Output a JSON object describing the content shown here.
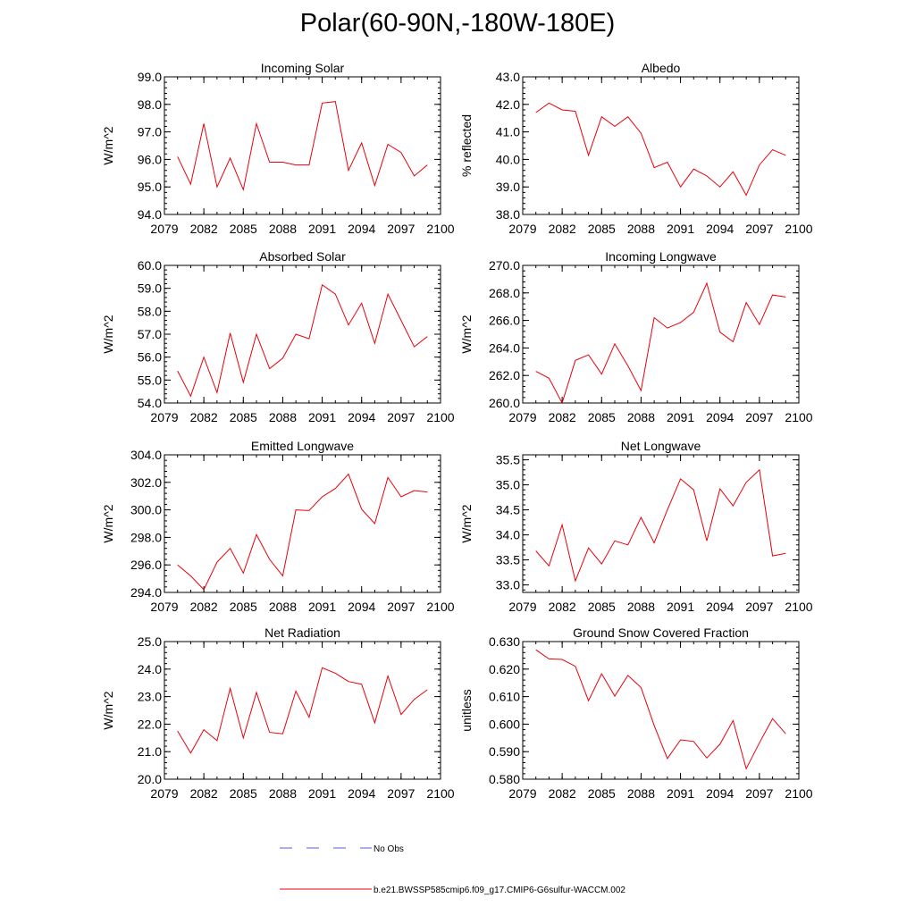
{
  "figure": {
    "title": "Polar(60-90N,-180W-180E)"
  },
  "legend": {
    "entries": [
      {
        "label": "No Obs",
        "color": "#5b5bd6",
        "dash": "dashed"
      },
      {
        "label": "b.e21.BWSSP585cmip6.f09_g17.CMIP6-G6sulfur-WACCM.002",
        "color": "#e8000b",
        "dash": "solid"
      }
    ]
  },
  "chart_data": [
    {
      "type": "line",
      "title": "Incoming Solar",
      "ylabel": "W/m^2",
      "xlim": [
        2079,
        2100
      ],
      "ylim": [
        94.0,
        99.0
      ],
      "xticks": [
        2079,
        2082,
        2085,
        2088,
        2091,
        2094,
        2097,
        2100
      ],
      "yticks": [
        "94.0",
        "95.0",
        "96.0",
        "97.0",
        "98.0",
        "99.0"
      ],
      "series": [
        {
          "color": "#e8000b",
          "x": [
            2080,
            2081,
            2082,
            2083,
            2084,
            2085,
            2086,
            2087,
            2088,
            2089,
            2090,
            2091,
            2092,
            2093,
            2094,
            2095,
            2096,
            2097,
            2098,
            2099
          ],
          "y": [
            96.1,
            95.1,
            97.3,
            95.0,
            96.05,
            94.9,
            97.3,
            95.9,
            95.9,
            95.8,
            95.8,
            98.05,
            98.1,
            95.6,
            96.6,
            95.05,
            96.55,
            96.25,
            95.4,
            95.8
          ]
        }
      ]
    },
    {
      "type": "line",
      "title": "Albedo",
      "ylabel": "% reflected",
      "xlim": [
        2079,
        2100
      ],
      "ylim": [
        38.0,
        43.0
      ],
      "xticks": [
        2079,
        2082,
        2085,
        2088,
        2091,
        2094,
        2097,
        2100
      ],
      "yticks": [
        "38.0",
        "39.0",
        "40.0",
        "41.0",
        "42.0",
        "43.0"
      ],
      "series": [
        {
          "color": "#e8000b",
          "x": [
            2080,
            2081,
            2082,
            2083,
            2084,
            2085,
            2086,
            2087,
            2088,
            2089,
            2090,
            2091,
            2092,
            2093,
            2094,
            2095,
            2096,
            2097,
            2098,
            2099
          ],
          "y": [
            41.7,
            42.05,
            41.8,
            41.75,
            40.15,
            41.55,
            41.2,
            41.55,
            40.95,
            39.7,
            39.9,
            39.0,
            39.65,
            39.4,
            39.0,
            39.55,
            38.7,
            39.8,
            40.35,
            40.15
          ]
        }
      ]
    },
    {
      "type": "line",
      "title": "Absorbed Solar",
      "ylabel": "W/m^2",
      "xlim": [
        2079,
        2100
      ],
      "ylim": [
        54.0,
        60.0
      ],
      "xticks": [
        2079,
        2082,
        2085,
        2088,
        2091,
        2094,
        2097,
        2100
      ],
      "yticks": [
        "54.0",
        "55.0",
        "56.0",
        "57.0",
        "58.0",
        "59.0",
        "60.0"
      ],
      "series": [
        {
          "color": "#e8000b",
          "x": [
            2080,
            2081,
            2082,
            2083,
            2084,
            2085,
            2086,
            2087,
            2088,
            2089,
            2090,
            2091,
            2092,
            2093,
            2094,
            2095,
            2096,
            2097,
            2098,
            2099
          ],
          "y": [
            55.4,
            54.3,
            56.0,
            54.45,
            57.05,
            54.9,
            57.0,
            55.5,
            55.95,
            57.0,
            56.8,
            59.15,
            58.75,
            57.4,
            58.35,
            56.6,
            58.75,
            57.6,
            56.45,
            56.9
          ]
        }
      ]
    },
    {
      "type": "line",
      "title": "Incoming Longwave",
      "ylabel": "W/m^2",
      "xlim": [
        2079,
        2100
      ],
      "ylim": [
        260.0,
        270.0
      ],
      "xticks": [
        2079,
        2082,
        2085,
        2088,
        2091,
        2094,
        2097,
        2100
      ],
      "yticks": [
        "260.0",
        "262.0",
        "264.0",
        "266.0",
        "268.0",
        "270.0"
      ],
      "series": [
        {
          "color": "#e8000b",
          "x": [
            2080,
            2081,
            2082,
            2083,
            2084,
            2085,
            2086,
            2087,
            2088,
            2089,
            2090,
            2091,
            2092,
            2093,
            2094,
            2095,
            2096,
            2097,
            2098,
            2099
          ],
          "y": [
            262.3,
            261.8,
            260.0,
            263.1,
            263.5,
            262.1,
            264.3,
            262.7,
            260.9,
            266.2,
            265.45,
            265.85,
            266.6,
            268.7,
            265.15,
            264.45,
            267.3,
            265.7,
            267.85,
            267.7
          ]
        }
      ]
    },
    {
      "type": "line",
      "title": "Emitted Longwave",
      "ylabel": "W/m^2",
      "xlim": [
        2079,
        2100
      ],
      "ylim": [
        294.0,
        304.0
      ],
      "xticks": [
        2079,
        2082,
        2085,
        2088,
        2091,
        2094,
        2097,
        2100
      ],
      "yticks": [
        "294.0",
        "296.0",
        "298.0",
        "300.0",
        "302.0",
        "304.0"
      ],
      "series": [
        {
          "color": "#e8000b",
          "x": [
            2080,
            2081,
            2082,
            2083,
            2084,
            2085,
            2086,
            2087,
            2088,
            2089,
            2090,
            2091,
            2092,
            2093,
            2094,
            2095,
            2096,
            2097,
            2098,
            2099
          ],
          "y": [
            296.0,
            295.2,
            294.2,
            296.2,
            297.2,
            295.4,
            298.2,
            296.4,
            295.2,
            300.0,
            299.95,
            300.95,
            301.55,
            302.6,
            300.05,
            299.0,
            302.35,
            300.95,
            301.4,
            301.3
          ]
        }
      ]
    },
    {
      "type": "line",
      "title": "Net Longwave",
      "ylabel": "W/m^2",
      "xlim": [
        2079,
        2100
      ],
      "ylim": [
        32.85,
        35.6
      ],
      "xticks": [
        2079,
        2082,
        2085,
        2088,
        2091,
        2094,
        2097,
        2100
      ],
      "yticks": [
        "33.0",
        "33.5",
        "34.0",
        "34.5",
        "35.0",
        "35.5"
      ],
      "series": [
        {
          "color": "#e8000b",
          "x": [
            2080,
            2081,
            2082,
            2083,
            2084,
            2085,
            2086,
            2087,
            2088,
            2089,
            2090,
            2091,
            2092,
            2093,
            2094,
            2095,
            2096,
            2097,
            2098,
            2099
          ],
          "y": [
            33.68,
            33.38,
            34.2,
            33.08,
            33.74,
            33.42,
            33.88,
            33.8,
            34.35,
            33.84,
            34.5,
            35.12,
            34.9,
            33.88,
            34.92,
            34.58,
            35.05,
            35.3,
            33.58,
            33.63
          ]
        }
      ]
    },
    {
      "type": "line",
      "title": "Net Radiation",
      "ylabel": "W/m^2",
      "xlim": [
        2079,
        2100
      ],
      "ylim": [
        20.0,
        25.0
      ],
      "xticks": [
        2079,
        2082,
        2085,
        2088,
        2091,
        2094,
        2097,
        2100
      ],
      "yticks": [
        "20.0",
        "21.0",
        "22.0",
        "23.0",
        "24.0",
        "25.0"
      ],
      "series": [
        {
          "color": "#e8000b",
          "x": [
            2080,
            2081,
            2082,
            2083,
            2084,
            2085,
            2086,
            2087,
            2088,
            2089,
            2090,
            2091,
            2092,
            2093,
            2094,
            2095,
            2096,
            2097,
            2098,
            2099
          ],
          "y": [
            21.75,
            20.95,
            21.8,
            21.4,
            23.3,
            21.5,
            23.15,
            21.7,
            21.65,
            23.2,
            22.25,
            24.05,
            23.85,
            23.55,
            23.45,
            22.05,
            23.75,
            22.35,
            22.9,
            23.25
          ]
        }
      ]
    },
    {
      "type": "line",
      "title": "Ground Snow Covered Fraction",
      "ylabel": "unitless",
      "xlim": [
        2079,
        2100
      ],
      "ylim": [
        0.58,
        0.63
      ],
      "xticks": [
        2079,
        2082,
        2085,
        2088,
        2091,
        2094,
        2097,
        2100
      ],
      "yticks": [
        "0.580",
        "0.590",
        "0.600",
        "0.610",
        "0.620",
        "0.630"
      ],
      "series": [
        {
          "color": "#e8000b",
          "x": [
            2080,
            2081,
            2082,
            2083,
            2084,
            2085,
            2086,
            2087,
            2088,
            2089,
            2090,
            2091,
            2092,
            2093,
            2094,
            2095,
            2096,
            2097,
            2098,
            2099
          ],
          "y": [
            0.627,
            0.6237,
            0.6235,
            0.621,
            0.6085,
            0.6183,
            0.6102,
            0.6177,
            0.6133,
            0.5995,
            0.5875,
            0.5943,
            0.5937,
            0.5877,
            0.5927,
            0.6013,
            0.5838,
            0.5932,
            0.602,
            0.5965
          ]
        }
      ]
    }
  ]
}
